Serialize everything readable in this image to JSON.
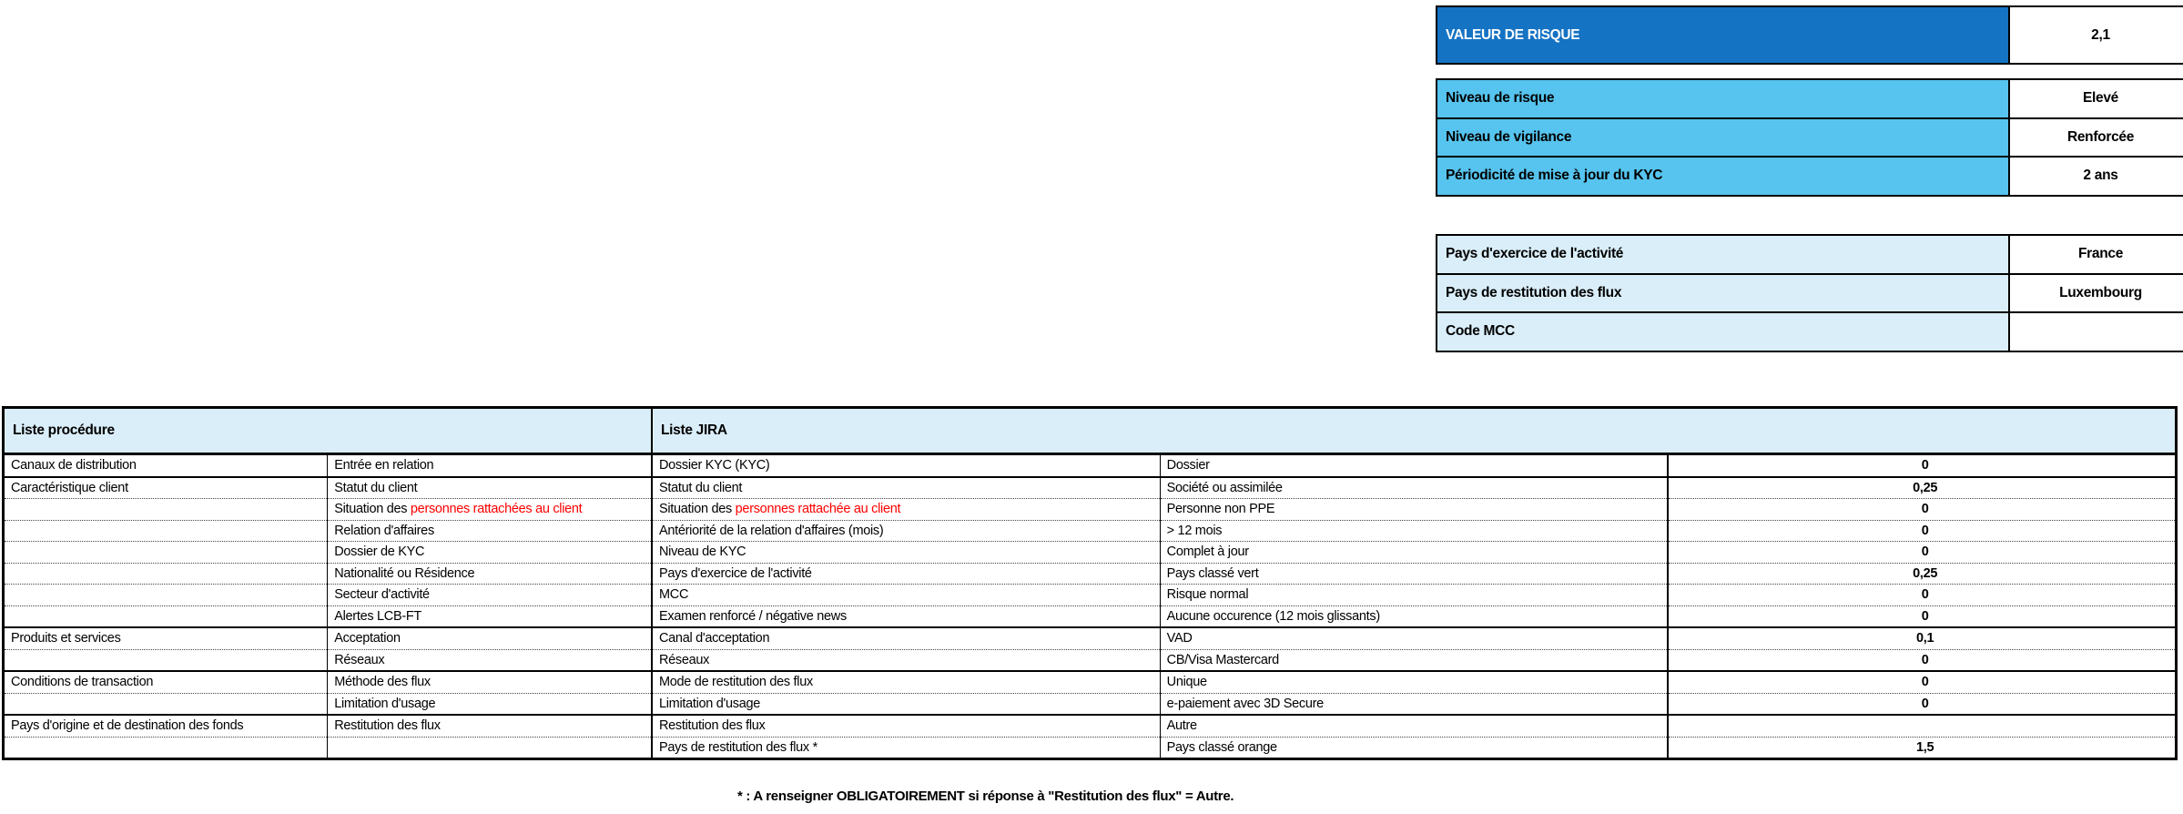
{
  "colors": {
    "dark_blue": "#1573C4",
    "mid_blue": "#56C4EE",
    "pale_blue": "#DAEEF9",
    "alert_red": "#FF0000"
  },
  "risk": {
    "valeur": {
      "label": "VALEUR DE RISQUE",
      "value": "2,1"
    },
    "levels": [
      {
        "label": "Niveau de risque",
        "value": "Elevé"
      },
      {
        "label": "Niveau de vigilance",
        "value": "Renforcée"
      },
      {
        "label": "Périodicité de mise à jour du KYC",
        "value": "2 ans"
      }
    ]
  },
  "country": {
    "rows": [
      {
        "label": "Pays d'exercice de l'activité",
        "value": "France"
      },
      {
        "label": "Pays de restitution des flux",
        "value": "Luxembourg"
      },
      {
        "label": "Code MCC",
        "value": ""
      }
    ]
  },
  "main": {
    "header": {
      "procedure": "Liste procédure",
      "jira": "Liste JIRA"
    },
    "rows": [
      {
        "category": "Canaux de distribution",
        "item": "Entrée en relation",
        "item_red": "",
        "jira": "Dossier KYC (KYC)",
        "jira_red": "",
        "answer": "Dossier",
        "score": "0"
      },
      {
        "category": "Caractéristique client",
        "item": "Statut du client",
        "item_red": "",
        "jira": "Statut du client",
        "jira_red": "",
        "answer": "Société ou assimilée",
        "score": "0,25"
      },
      {
        "category": "",
        "item": "Situation des ",
        "item_red": "personnes rattachées au client",
        "jira": "Situation des ",
        "jira_red": "personnes rattachée au client",
        "answer": "Personne non PPE",
        "score": "0"
      },
      {
        "category": "",
        "item": "Relation d'affaires",
        "item_red": "",
        "jira": "Antériorité de la relation d'affaires (mois)",
        "jira_red": "",
        "answer": "> 12 mois",
        "score": "0"
      },
      {
        "category": "",
        "item": "Dossier de KYC",
        "item_red": "",
        "jira": "Niveau de KYC",
        "jira_red": "",
        "answer": "Complet à jour",
        "score": "0"
      },
      {
        "category": "",
        "item": "Nationalité ou Résidence",
        "item_red": "",
        "jira": "Pays d'exercice de l'activité",
        "jira_red": "",
        "answer": "Pays classé vert",
        "score": "0,25"
      },
      {
        "category": "",
        "item": "Secteur d'activité",
        "item_red": "",
        "jira": "MCC",
        "jira_red": "",
        "answer": "Risque normal",
        "score": "0"
      },
      {
        "category": "",
        "item": "Alertes LCB-FT",
        "item_red": "",
        "jira": "Examen renforcé / négative news",
        "jira_red": "",
        "answer": "Aucune occurence (12 mois glissants)",
        "score": "0"
      },
      {
        "category": "Produits et services",
        "item": "Acceptation",
        "item_red": "",
        "jira": "Canal d'acceptation",
        "jira_red": "",
        "answer": "VAD",
        "score": "0,1"
      },
      {
        "category": "",
        "item": "Réseaux",
        "item_red": "",
        "jira": "Réseaux",
        "jira_red": "",
        "answer": "CB/Visa Mastercard",
        "score": "0"
      },
      {
        "category": "Conditions de transaction",
        "item": "Méthode des flux",
        "item_red": "",
        "jira": "Mode de restitution des flux",
        "jira_red": "",
        "answer": "Unique",
        "score": "0"
      },
      {
        "category": "",
        "item": "Limitation d'usage",
        "item_red": "",
        "jira": "Limitation d'usage",
        "jira_red": "",
        "answer": "e-paiement avec 3D Secure",
        "score": "0"
      },
      {
        "category": "Pays d'origine et de destination des fonds",
        "item": "Restitution des flux",
        "item_red": "",
        "jira": "Restitution des flux",
        "jira_red": "",
        "answer": "Autre",
        "score": ""
      },
      {
        "category": "",
        "item": "",
        "item_red": "",
        "jira": "Pays de restitution des flux *",
        "jira_red": "",
        "answer": "Pays classé orange",
        "score": "1,5"
      }
    ]
  },
  "footnote": "* : A renseigner OBLIGATOIREMENT si réponse à \"Restitution des flux\" = Autre."
}
